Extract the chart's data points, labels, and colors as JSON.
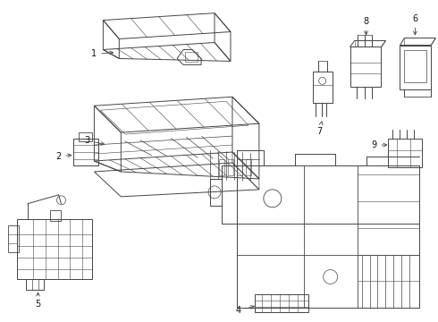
{
  "background_color": "#ffffff",
  "line_color": "#444444",
  "label_color": "#111111",
  "fig_width": 4.9,
  "fig_height": 3.6,
  "dpi": 100
}
